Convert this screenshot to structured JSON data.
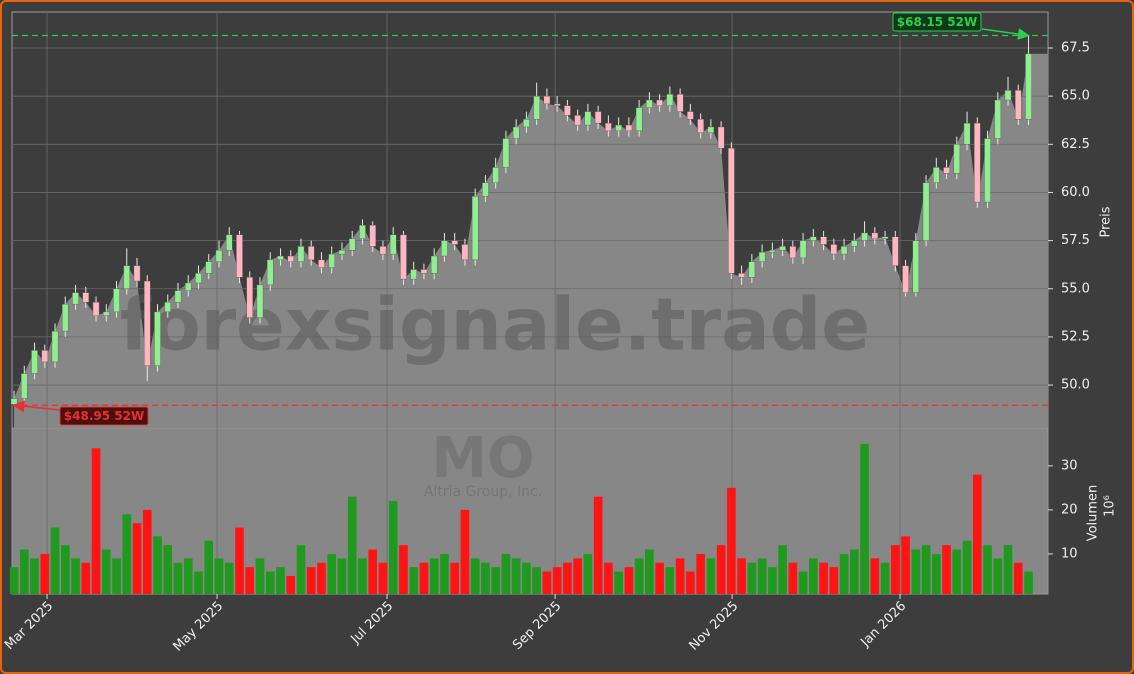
{
  "chart_data": {
    "type": "candlestick",
    "ylabel": "Preis",
    "watermark": "forexsignale.trade",
    "symbol": "MO",
    "company": "Altria Group, Inc.",
    "grid": true,
    "up_color": "#90ee90",
    "down_color": "#ffb6c1",
    "area_color": "#878787",
    "xlim": [
      -0.2,
      100.9
    ],
    "xticks": [
      {
        "value": 3.22,
        "label": "Mar 2025"
      },
      {
        "value": 19.81,
        "label": "May 2025"
      },
      {
        "value": 36.4,
        "label": "Jul 2025"
      },
      {
        "value": 52.8,
        "label": "Sep 2025"
      },
      {
        "value": 70.07,
        "label": "Nov 2025"
      },
      {
        "value": 86.46,
        "label": "Jan 2026"
      }
    ],
    "ylim": [
      47.77,
      69.37
    ],
    "yticks": [
      {
        "value": 50,
        "label": "50.0"
      },
      52.5,
      {
        "value": 55,
        "label": "55.0"
      },
      57.5,
      {
        "value": 60,
        "label": "60.0"
      },
      62.5,
      {
        "value": 65,
        "label": "65.0"
      },
      67.5
    ],
    "open": [
      49.0,
      49.3,
      50.6,
      51.8,
      51.2,
      52.8,
      54.2,
      54.8,
      54.3,
      53.6,
      53.8,
      55.0,
      56.2,
      55.4,
      51.0,
      53.8,
      54.3,
      54.9,
      55.3,
      55.8,
      56.4,
      57.0,
      57.8,
      55.6,
      53.5,
      55.2,
      56.5,
      56.7,
      56.4,
      57.2,
      56.5,
      56.1,
      56.8,
      57.0,
      57.6,
      58.3,
      57.2,
      56.8,
      57.8,
      55.5,
      56.0,
      55.8,
      56.7,
      57.5,
      57.3,
      56.5,
      59.8,
      60.5,
      61.3,
      62.8,
      63.4,
      63.8,
      65.0,
      64.6,
      64.5,
      64.0,
      63.5,
      64.2,
      63.6,
      63.2,
      63.5,
      63.2,
      64.4,
      64.8,
      64.5,
      65.1,
      64.2,
      63.8,
      63.1,
      63.4,
      62.3,
      55.8,
      55.6,
      56.4,
      56.9,
      57.0,
      57.2,
      56.6,
      57.5,
      57.7,
      57.3,
      56.8,
      57.2,
      57.5,
      57.9,
      57.6,
      57.7,
      56.2,
      54.8,
      57.5,
      60.5,
      61.3,
      61.0,
      62.5,
      63.6,
      59.5,
      62.8,
      64.8,
      65.3,
      63.8
    ],
    "high": [
      49.7,
      51.0,
      52.2,
      52.1,
      53.2,
      54.6,
      55.2,
      55.1,
      54.6,
      54.2,
      55.4,
      57.1,
      56.6,
      55.7,
      54.2,
      54.7,
      55.3,
      55.7,
      56.2,
      56.8,
      57.5,
      58.2,
      58.0,
      55.9,
      55.6,
      56.9,
      57.1,
      57.0,
      57.6,
      57.5,
      56.9,
      57.2,
      57.4,
      58.0,
      58.6,
      58.5,
      57.5,
      58.2,
      58.0,
      56.4,
      56.3,
      57.1,
      57.9,
      57.9,
      57.6,
      60.2,
      60.9,
      61.8,
      63.2,
      63.8,
      64.2,
      65.7,
      65.4,
      65.0,
      64.8,
      64.3,
      64.6,
      64.5,
      64.0,
      63.9,
      63.9,
      64.8,
      65.2,
      65.1,
      65.5,
      65.4,
      64.6,
      64.1,
      63.8,
      63.7,
      62.6,
      56.2,
      56.8,
      57.3,
      57.4,
      57.6,
      57.5,
      57.9,
      58.1,
      58.0,
      57.6,
      57.6,
      57.9,
      58.5,
      58.2,
      58.0,
      58.0,
      56.5,
      57.9,
      60.9,
      61.8,
      61.7,
      62.9,
      64.2,
      63.9,
      63.2,
      65.2,
      66.0,
      65.6,
      68.15
    ],
    "low": [
      48.95,
      49.0,
      50.3,
      50.9,
      50.9,
      52.5,
      53.9,
      54.0,
      53.3,
      53.3,
      53.5,
      54.7,
      55.1,
      50.2,
      50.7,
      53.5,
      54.0,
      54.6,
      55.0,
      55.5,
      56.1,
      56.7,
      55.3,
      53.2,
      53.2,
      54.9,
      56.2,
      56.1,
      56.1,
      56.2,
      55.8,
      55.8,
      56.5,
      56.7,
      57.3,
      56.9,
      56.5,
      56.5,
      55.2,
      55.2,
      55.5,
      55.5,
      56.4,
      57.0,
      56.2,
      56.2,
      59.5,
      60.2,
      61.0,
      62.5,
      63.1,
      63.5,
      64.3,
      64.2,
      63.7,
      63.2,
      63.2,
      63.3,
      62.9,
      62.9,
      62.9,
      62.9,
      64.1,
      64.2,
      64.2,
      63.9,
      63.5,
      62.8,
      62.8,
      62.0,
      55.5,
      55.2,
      55.3,
      56.1,
      56.6,
      56.7,
      56.3,
      56.3,
      57.2,
      57.0,
      56.5,
      56.5,
      56.9,
      57.2,
      57.3,
      57.3,
      55.9,
      54.6,
      54.6,
      57.2,
      60.2,
      60.7,
      60.7,
      62.2,
      59.2,
      59.2,
      62.5,
      64.5,
      63.5,
      63.5
    ],
    "close": [
      49.3,
      50.6,
      51.8,
      51.2,
      52.8,
      54.2,
      54.8,
      54.3,
      53.6,
      53.8,
      55.0,
      56.2,
      55.4,
      51.0,
      53.8,
      54.3,
      54.9,
      55.3,
      55.8,
      56.4,
      57.0,
      57.8,
      55.6,
      53.5,
      55.2,
      56.5,
      56.7,
      56.4,
      57.2,
      56.5,
      56.1,
      56.8,
      57.0,
      57.6,
      58.3,
      57.2,
      56.8,
      57.8,
      55.5,
      56.0,
      55.8,
      56.7,
      57.5,
      57.3,
      56.5,
      59.8,
      60.5,
      61.3,
      62.8,
      63.4,
      63.8,
      65.0,
      64.6,
      64.5,
      64.0,
      63.5,
      64.2,
      63.6,
      63.2,
      63.5,
      63.2,
      64.4,
      64.8,
      64.5,
      65.1,
      64.2,
      63.8,
      63.1,
      63.4,
      62.3,
      55.8,
      55.6,
      56.4,
      56.9,
      57.0,
      57.2,
      56.6,
      57.5,
      57.7,
      57.3,
      56.8,
      57.2,
      57.5,
      57.9,
      57.6,
      57.7,
      56.2,
      54.8,
      57.5,
      60.5,
      61.3,
      61.0,
      62.5,
      63.6,
      59.5,
      62.8,
      64.8,
      65.3,
      63.8,
      67.2
    ],
    "high_52w": {
      "value": 68.15,
      "label": "$68.15 52W",
      "color": "#2ecc50"
    },
    "low_52w": {
      "value": 48.95,
      "label": "$48.95 52W",
      "color": "#e83030"
    },
    "volume": {
      "label": "Volumen",
      "unit_label": "10⁶",
      "up_color": "#1f9a1f",
      "down_color": "#ff1414",
      "ylim": [
        0.9,
        38.6
      ],
      "yticks": [
        10,
        20,
        30
      ],
      "values": [
        7,
        11,
        9,
        10,
        16,
        12,
        9,
        8,
        34,
        11,
        9,
        19,
        17,
        20,
        14,
        12,
        8,
        9,
        6,
        13,
        9,
        8,
        16,
        7,
        9,
        6,
        7,
        5,
        12,
        7,
        8,
        10,
        9,
        23,
        9,
        11,
        8,
        22,
        12,
        7,
        8,
        9,
        10,
        8,
        20,
        9,
        8,
        7,
        10,
        9,
        8,
        7,
        6,
        7,
        8,
        9,
        10,
        23,
        8,
        6,
        7,
        9,
        11,
        8,
        7,
        9,
        6,
        10,
        9,
        12,
        25,
        9,
        8,
        9,
        7,
        12,
        8,
        6,
        9,
        8,
        7,
        10,
        11,
        35,
        9,
        8,
        12,
        14,
        11,
        12,
        10,
        12,
        11,
        13,
        28,
        12,
        9,
        12,
        8,
        6
      ]
    }
  }
}
